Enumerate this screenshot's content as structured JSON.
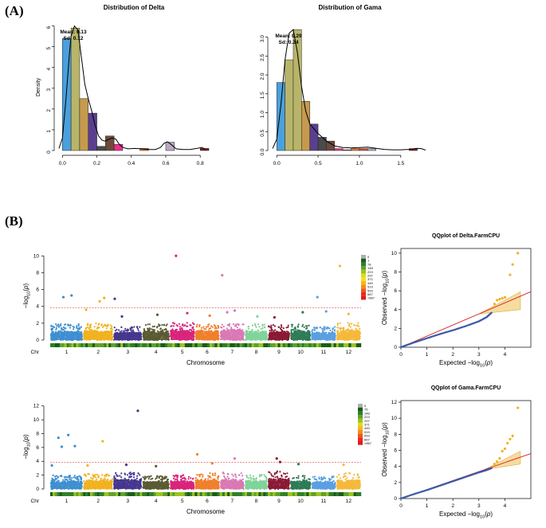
{
  "panels": {
    "a": "(A)",
    "b": "(B)"
  },
  "chart_data": [
    {
      "id": "hist_delta",
      "type": "bar",
      "title": "Distribution of Delta",
      "xlabel": "",
      "ylabel": "Density",
      "bin_width": 0.05,
      "bin_starts": [
        0.0,
        0.05,
        0.1,
        0.15,
        0.2,
        0.25,
        0.3,
        0.35,
        0.4,
        0.45,
        0.5,
        0.55,
        0.6,
        0.65,
        0.7,
        0.75,
        0.8
      ],
      "values": [
        5.4,
        5.9,
        2.5,
        1.8,
        0.2,
        0.7,
        0.3,
        0.0,
        0.0,
        0.1,
        0.0,
        0.0,
        0.4,
        0.0,
        0.0,
        0.0,
        0.1
      ],
      "colors": [
        "#4aa0dc",
        "#b8b56a",
        "#c69a4e",
        "#5a3f8e",
        "#4a4a4a",
        "#6e4a3e",
        "#e8318b",
        "#ffffff",
        "#ffffff",
        "#e87722",
        "#ffffff",
        "#ffffff",
        "#b9a8c4",
        "#ffffff",
        "#ffffff",
        "#ffffff",
        "#8b1a1a"
      ],
      "xlim": [
        -0.02,
        0.85
      ],
      "ylim": [
        0,
        6.1
      ],
      "xticks": [
        0.0,
        0.2,
        0.4,
        0.6,
        0.8
      ],
      "xtick_labels": [
        "0.0",
        "0.2",
        "0.4",
        "0.6",
        "0.8"
      ],
      "yticks": [
        0,
        1,
        2,
        3,
        4,
        5,
        6
      ],
      "ytick_labels": [
        "0",
        "1",
        "2",
        "3",
        "4",
        "5",
        "6"
      ],
      "density_x": [
        -0.02,
        0.0,
        0.02,
        0.04,
        0.05,
        0.07,
        0.09,
        0.11,
        0.13,
        0.15,
        0.17,
        0.19,
        0.21,
        0.23,
        0.25,
        0.27,
        0.29,
        0.31,
        0.33,
        0.35,
        0.38,
        0.42,
        0.46,
        0.5,
        0.54,
        0.57,
        0.59,
        0.61,
        0.63,
        0.66,
        0.7,
        0.74,
        0.78,
        0.81,
        0.83
      ],
      "density_y": [
        0.1,
        0.6,
        2.4,
        4.6,
        5.5,
        6.0,
        5.8,
        4.5,
        3.2,
        2.5,
        1.9,
        1.2,
        0.7,
        0.5,
        0.45,
        0.55,
        0.6,
        0.55,
        0.3,
        0.15,
        0.08,
        0.1,
        0.08,
        0.05,
        0.05,
        0.15,
        0.35,
        0.42,
        0.3,
        0.08,
        0.05,
        0.05,
        0.1,
        0.15,
        0.05
      ],
      "annotation": {
        "mean": "Mean: 0.13",
        "sd": "Sd: 0.12"
      }
    },
    {
      "id": "hist_gama",
      "type": "bar",
      "title": "Distribution of Gama",
      "xlabel": "",
      "ylabel": "",
      "bin_width": 0.1,
      "bin_starts": [
        0.0,
        0.1,
        0.2,
        0.3,
        0.4,
        0.5,
        0.6,
        0.7,
        0.8,
        0.9,
        1.0,
        1.1,
        1.2,
        1.3,
        1.4,
        1.5,
        1.6,
        1.7
      ],
      "values": [
        1.8,
        2.4,
        3.2,
        1.3,
        0.7,
        0.35,
        0.25,
        0.05,
        0.02,
        0.05,
        0.05,
        0.05,
        0.0,
        0.0,
        0.0,
        0.0,
        0.05,
        0.0
      ],
      "colors": [
        "#4aa0dc",
        "#b8b56a",
        "#b8b56a",
        "#c69a4e",
        "#5a3f8e",
        "#4a4a4a",
        "#6e4a3e",
        "#e8318b",
        "#9b2d5e",
        "#e87722",
        "#d94a2e",
        "#b9a8c4",
        "#ffffff",
        "#ffffff",
        "#ffffff",
        "#ffffff",
        "#8b1a1a",
        "#ffffff"
      ],
      "xlim": [
        -0.05,
        1.82
      ],
      "ylim": [
        0,
        3.35
      ],
      "xticks": [
        0.0,
        0.5,
        1.0,
        1.5
      ],
      "xtick_labels": [
        "0.0",
        "0.5",
        "1.0",
        "1.5"
      ],
      "yticks": [
        0,
        0.5,
        1.0,
        1.5,
        2.0,
        2.5,
        3.0
      ],
      "ytick_labels": [
        "0.0",
        "0.5",
        "1.0",
        "1.5",
        "2.0",
        "2.5",
        "3.0"
      ],
      "density_x": [
        -0.05,
        0.0,
        0.05,
        0.1,
        0.15,
        0.2,
        0.25,
        0.3,
        0.35,
        0.4,
        0.5,
        0.6,
        0.7,
        0.8,
        0.9,
        1.0,
        1.1,
        1.2,
        1.3,
        1.4,
        1.5,
        1.6,
        1.7,
        1.75,
        1.8
      ],
      "density_y": [
        0.05,
        0.3,
        1.2,
        2.4,
        3.1,
        3.2,
        2.6,
        1.7,
        1.05,
        0.7,
        0.45,
        0.25,
        0.12,
        0.08,
        0.07,
        0.08,
        0.09,
        0.06,
        0.03,
        0.02,
        0.02,
        0.03,
        0.06,
        0.05,
        0.01
      ],
      "annotation": {
        "mean": "Mean: 0.29",
        "sd": "Sd: 0.24"
      }
    },
    {
      "id": "manhattan_delta",
      "type": "scatter",
      "title": "",
      "xlabel": "Chromosome",
      "ylabel": "−log10(p)",
      "ylim": [
        0,
        10.5
      ],
      "yticks": [
        0,
        2,
        4,
        6,
        8,
        10
      ],
      "ytick_labels": [
        "0",
        "2",
        "4",
        "6",
        "8",
        "10"
      ],
      "threshold": 3.85,
      "chromosomes": [
        "1",
        "2",
        "3",
        "4",
        "5",
        "6",
        "7",
        "8",
        "9",
        "10",
        "11",
        "12"
      ],
      "chrom_label": "Chr",
      "chrom_colors": [
        "#3d8fd1",
        "#f0b21f",
        "#45368e",
        "#5a5a33",
        "#d9237a",
        "#f07f2a",
        "#d978b5",
        "#7fd39a",
        "#8a1a35",
        "#2e7b57",
        "#5a9fe0",
        "#f5b83a"
      ],
      "chrom_widths": [
        1.25,
        1.15,
        1.1,
        1.05,
        0.95,
        0.95,
        0.95,
        0.88,
        0.85,
        0.8,
        0.95,
        0.95
      ],
      "base_heights": [
        1.9,
        2.0,
        1.6,
        1.9,
        2.1,
        2.0,
        2.2,
        1.9,
        1.8,
        1.9,
        1.6,
        2.1
      ],
      "highlights": [
        {
          "chr": 1,
          "pos": 0.4,
          "y": 5.1
        },
        {
          "chr": 1,
          "pos": 0.65,
          "y": 5.3
        },
        {
          "chr": 2,
          "pos": 0.1,
          "y": 3.6
        },
        {
          "chr": 2,
          "pos": 0.55,
          "y": 4.6
        },
        {
          "chr": 2,
          "pos": 0.7,
          "y": 5.0
        },
        {
          "chr": 3,
          "pos": 0.05,
          "y": 4.9
        },
        {
          "chr": 3,
          "pos": 0.3,
          "y": 2.8
        },
        {
          "chr": 4,
          "pos": 0.55,
          "y": 3.0
        },
        {
          "chr": 5,
          "pos": 0.25,
          "y": 10.0
        },
        {
          "chr": 5,
          "pos": 0.7,
          "y": 3.2
        },
        {
          "chr": 6,
          "pos": 0.6,
          "y": 2.9
        },
        {
          "chr": 7,
          "pos": 0.1,
          "y": 7.7
        },
        {
          "chr": 7,
          "pos": 0.3,
          "y": 3.3
        },
        {
          "chr": 7,
          "pos": 0.6,
          "y": 3.5
        },
        {
          "chr": 8,
          "pos": 0.55,
          "y": 2.8
        },
        {
          "chr": 9,
          "pos": 0.3,
          "y": 2.7
        },
        {
          "chr": 10,
          "pos": 0.6,
          "y": 3.3
        },
        {
          "chr": 11,
          "pos": 0.25,
          "y": 5.1
        },
        {
          "chr": 11,
          "pos": 0.6,
          "y": 3.4
        },
        {
          "chr": 12,
          "pos": 0.15,
          "y": 8.8
        },
        {
          "chr": 12,
          "pos": 0.5,
          "y": 3.1
        }
      ],
      "density_legend": [
        "0",
        "1",
        "78",
        "148",
        "223",
        "297",
        "371",
        "445",
        "519",
        "593",
        "667",
        ">667"
      ],
      "density_colors": [
        "#b0b0b0",
        "#1a5c1a",
        "#2f7f2a",
        "#5fa12a",
        "#9cc31f",
        "#d7df1c",
        "#f4e01a",
        "#f8b61a",
        "#f78c1b",
        "#f0561c",
        "#e82a1f",
        "#e81818"
      ]
    },
    {
      "id": "qq_delta",
      "type": "scatter",
      "title": "QQplot of Delta.FarmCPU",
      "xlabel": "Expected  −log10(p)",
      "ylabel": "Observed  −log10(p)",
      "xlim": [
        0,
        5.0
      ],
      "ylim": [
        0,
        10.5
      ],
      "xticks": [
        0,
        1,
        2,
        3,
        4
      ],
      "xtick_labels": [
        "0",
        "1",
        "2",
        "3",
        "4"
      ],
      "yticks": [
        0,
        2,
        4,
        6,
        8,
        10
      ],
      "ytick_labels": [
        "0",
        "2",
        "4",
        "6",
        "8",
        "10"
      ],
      "line_slope": 1.18,
      "band": {
        "x_start": 3.0,
        "x_end": 4.6,
        "lower_end": 4.0,
        "upper_end": 5.9
      },
      "curve_x": [
        0,
        0.5,
        1.0,
        1.5,
        2.0,
        2.5,
        3.0,
        3.3,
        3.5
      ],
      "curve_y": [
        0,
        0.5,
        0.95,
        1.4,
        1.8,
        2.25,
        2.75,
        3.2,
        3.7
      ],
      "outliers": [
        {
          "x": 3.6,
          "y": 4.6
        },
        {
          "x": 3.7,
          "y": 5.0
        },
        {
          "x": 3.8,
          "y": 5.1
        },
        {
          "x": 3.9,
          "y": 5.2
        },
        {
          "x": 4.0,
          "y": 5.3
        },
        {
          "x": 4.2,
          "y": 7.7
        },
        {
          "x": 4.3,
          "y": 8.8
        },
        {
          "x": 4.5,
          "y": 10.0
        }
      ]
    },
    {
      "id": "manhattan_gama",
      "type": "scatter",
      "title": "",
      "xlabel": "Chromosome",
      "ylabel": "−log10(p)",
      "ylim": [
        0,
        12.2
      ],
      "yticks": [
        0,
        2,
        4,
        6,
        8,
        10,
        12
      ],
      "ytick_labels": [
        "0",
        "2",
        "4",
        "6",
        "8",
        "10",
        "12"
      ],
      "threshold": 3.85,
      "chromosomes": [
        "1",
        "2",
        "3",
        "4",
        "5",
        "6",
        "7",
        "8",
        "9",
        "10",
        "11",
        "12"
      ],
      "chrom_label": "Chr",
      "chrom_colors": [
        "#3d8fd1",
        "#f0b21f",
        "#45368e",
        "#5a5a33",
        "#d9237a",
        "#f07f2a",
        "#d978b5",
        "#7fd39a",
        "#8a1a35",
        "#2e7b57",
        "#5a9fe0",
        "#f5b83a"
      ],
      "chrom_widths": [
        1.25,
        1.15,
        1.1,
        1.05,
        0.95,
        0.95,
        0.95,
        0.88,
        0.85,
        0.8,
        0.95,
        0.95
      ],
      "base_heights": [
        2.0,
        2.2,
        2.4,
        1.9,
        2.1,
        2.3,
        2.4,
        2.1,
        2.6,
        2.0,
        1.8,
        2.3
      ],
      "highlights": [
        {
          "chr": 1,
          "pos": 0.25,
          "y": 7.4
        },
        {
          "chr": 1,
          "pos": 0.35,
          "y": 6.1
        },
        {
          "chr": 1,
          "pos": 0.55,
          "y": 7.8
        },
        {
          "chr": 1,
          "pos": 0.75,
          "y": 6.2
        },
        {
          "chr": 1,
          "pos": 0.05,
          "y": 3.4
        },
        {
          "chr": 2,
          "pos": 0.65,
          "y": 6.9
        },
        {
          "chr": 2,
          "pos": 0.15,
          "y": 3.4
        },
        {
          "chr": 3,
          "pos": 0.85,
          "y": 11.3
        },
        {
          "chr": 3,
          "pos": 0.45,
          "y": 3.5
        },
        {
          "chr": 4,
          "pos": 0.5,
          "y": 3.3
        },
        {
          "chr": 6,
          "pos": 0.1,
          "y": 5.0
        },
        {
          "chr": 6,
          "pos": 0.7,
          "y": 3.7
        },
        {
          "chr": 7,
          "pos": 0.6,
          "y": 4.4
        },
        {
          "chr": 9,
          "pos": 0.4,
          "y": 4.4
        },
        {
          "chr": 9,
          "pos": 0.55,
          "y": 3.9
        },
        {
          "chr": 10,
          "pos": 0.4,
          "y": 3.6
        },
        {
          "chr": 12,
          "pos": 0.3,
          "y": 3.5
        }
      ],
      "density_legend": [
        "0",
        "75",
        "148",
        "223",
        "297",
        "371",
        "445",
        "519",
        "593",
        "667",
        ">667"
      ],
      "density_colors": [
        "#b0b0b0",
        "#1a5c1a",
        "#2f7f2a",
        "#5fa12a",
        "#9cc31f",
        "#d7df1c",
        "#f8b61a",
        "#f78c1b",
        "#f0561c",
        "#e82a1f",
        "#e81818"
      ]
    },
    {
      "id": "qq_gama",
      "type": "scatter",
      "title": "QQplot of Gama.FarmCPU",
      "xlabel": "Expected  −log10(p)",
      "ylabel": "Observed  −log10(p)",
      "xlim": [
        0,
        5.0
      ],
      "ylim": [
        0,
        12.2
      ],
      "xticks": [
        0,
        1,
        2,
        3,
        4
      ],
      "xtick_labels": [
        "0",
        "1",
        "2",
        "3",
        "4"
      ],
      "yticks": [
        0,
        2,
        4,
        6,
        8,
        10,
        12
      ],
      "ytick_labels": [
        "0",
        "2",
        "4",
        "6",
        "8",
        "10",
        "12"
      ],
      "line_slope": 1.12,
      "band": {
        "x_start": 3.2,
        "x_end": 4.6,
        "lower_end": 4.3,
        "upper_end": 5.9
      },
      "curve_x": [
        0,
        0.5,
        1.0,
        1.5,
        2.0,
        2.5,
        3.0,
        3.3,
        3.5
      ],
      "curve_y": [
        0,
        0.55,
        1.05,
        1.6,
        2.15,
        2.7,
        3.25,
        3.55,
        3.8
      ],
      "outliers": [
        {
          "x": 3.6,
          "y": 4.3
        },
        {
          "x": 3.7,
          "y": 4.6
        },
        {
          "x": 3.8,
          "y": 5.0
        },
        {
          "x": 3.9,
          "y": 5.9
        },
        {
          "x": 4.0,
          "y": 6.2
        },
        {
          "x": 4.1,
          "y": 6.9
        },
        {
          "x": 4.2,
          "y": 7.4
        },
        {
          "x": 4.3,
          "y": 7.8
        },
        {
          "x": 4.5,
          "y": 11.3
        }
      ]
    }
  ]
}
